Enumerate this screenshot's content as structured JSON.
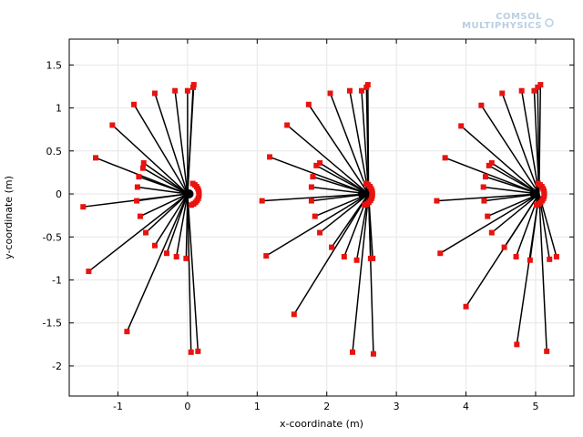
{
  "logo": {
    "line1": "COMSOL",
    "line2": "MULTIPHYSICS",
    "color": "#b9cfe3"
  },
  "colors": {
    "line": "#000000",
    "marker": "#e8130f",
    "grid": "#e6e6e6",
    "frame": "#000000"
  },
  "chart_data": {
    "type": "line",
    "title": "",
    "xlabel": "x-coordinate (m)",
    "ylabel": "y-coordinate (m)",
    "xlim": [
      -1.7,
      5.55
    ],
    "ylim": [
      -2.35,
      1.8
    ],
    "xticks": [
      -1,
      0,
      1,
      2,
      3,
      4,
      5
    ],
    "yticks": [
      -2,
      -1.5,
      -1,
      -0.5,
      0,
      0.5,
      1,
      1.5
    ],
    "grid": true,
    "legend": "none",
    "series": [
      {
        "segments": [
          [
            [
              0.0,
              0.0
            ],
            [
              -1.5,
              -0.15
            ]
          ],
          [
            [
              0.0,
              0.0
            ],
            [
              -1.42,
              -0.9
            ]
          ],
          [
            [
              0.0,
              0.0
            ],
            [
              -1.32,
              0.42
            ]
          ],
          [
            [
              0.0,
              0.0
            ],
            [
              -1.08,
              0.8
            ]
          ],
          [
            [
              0.0,
              0.0
            ],
            [
              -0.87,
              -1.6
            ]
          ],
          [
            [
              0.0,
              0.0
            ],
            [
              -0.77,
              1.04
            ]
          ],
          [
            [
              0.0,
              0.0
            ],
            [
              -0.72,
              0.08
            ]
          ],
          [
            [
              0.0,
              0.0
            ],
            [
              -0.73,
              -0.08
            ]
          ],
          [
            [
              0.0,
              0.0
            ],
            [
              -0.7,
              0.2
            ]
          ],
          [
            [
              0.0,
              0.0
            ],
            [
              -0.68,
              -0.26
            ]
          ],
          [
            [
              0.0,
              0.0
            ],
            [
              -0.63,
              0.36
            ]
          ],
          [
            [
              0.0,
              0.0
            ],
            [
              -0.6,
              -0.45
            ]
          ],
          [
            [
              0.0,
              0.0
            ],
            [
              -0.64,
              0.3
            ]
          ],
          [
            [
              0.0,
              0.0
            ],
            [
              -0.47,
              1.17
            ]
          ],
          [
            [
              0.0,
              0.0
            ],
            [
              -0.47,
              -0.6
            ]
          ],
          [
            [
              0.0,
              0.0
            ],
            [
              -0.3,
              -0.69
            ]
          ],
          [
            [
              0.0,
              0.0
            ],
            [
              -0.18,
              1.2
            ]
          ],
          [
            [
              0.0,
              0.0
            ],
            [
              -0.16,
              -0.73
            ]
          ],
          [
            [
              0.0,
              0.0
            ],
            [
              -0.02,
              -0.75
            ]
          ],
          [
            [
              0.0,
              0.0
            ],
            [
              0.0,
              1.2
            ]
          ],
          [
            [
              0.0,
              0.0
            ],
            [
              0.05,
              -1.84
            ]
          ],
          [
            [
              0.0,
              0.0
            ],
            [
              0.08,
              1.24
            ]
          ],
          [
            [
              0.0,
              0.0
            ],
            [
              0.09,
              1.27
            ]
          ],
          [
            [
              0.0,
              0.0
            ],
            [
              0.15,
              -1.83
            ]
          ]
        ]
      },
      {
        "segments": [
          [
            [
              2.6,
              0.0
            ],
            [
              1.07,
              -0.08
            ]
          ],
          [
            [
              2.6,
              0.0
            ],
            [
              1.13,
              -0.72
            ]
          ],
          [
            [
              2.6,
              0.0
            ],
            [
              1.18,
              0.43
            ]
          ],
          [
            [
              2.6,
              0.0
            ],
            [
              1.43,
              0.8
            ]
          ],
          [
            [
              2.6,
              0.0
            ],
            [
              1.53,
              -1.4
            ]
          ],
          [
            [
              2.6,
              0.0
            ],
            [
              1.74,
              1.04
            ]
          ],
          [
            [
              2.6,
              0.0
            ],
            [
              1.78,
              0.08
            ]
          ],
          [
            [
              2.6,
              0.0
            ],
            [
              1.78,
              -0.08
            ]
          ],
          [
            [
              2.6,
              0.0
            ],
            [
              1.8,
              0.2
            ]
          ],
          [
            [
              2.6,
              0.0
            ],
            [
              1.83,
              -0.26
            ]
          ],
          [
            [
              2.6,
              0.0
            ],
            [
              1.85,
              0.33
            ]
          ],
          [
            [
              2.6,
              0.0
            ],
            [
              1.9,
              -0.45
            ]
          ],
          [
            [
              2.6,
              0.0
            ],
            [
              1.9,
              0.36
            ]
          ],
          [
            [
              2.6,
              0.0
            ],
            [
              2.05,
              1.17
            ]
          ],
          [
            [
              2.6,
              0.0
            ],
            [
              2.07,
              -0.62
            ]
          ],
          [
            [
              2.6,
              0.0
            ],
            [
              2.25,
              -0.73
            ]
          ],
          [
            [
              2.6,
              0.0
            ],
            [
              2.33,
              1.2
            ]
          ],
          [
            [
              2.6,
              0.0
            ],
            [
              2.37,
              -1.84
            ]
          ],
          [
            [
              2.6,
              0.0
            ],
            [
              2.43,
              -0.77
            ]
          ],
          [
            [
              2.6,
              0.0
            ],
            [
              2.5,
              1.2
            ]
          ],
          [
            [
              2.6,
              0.0
            ],
            [
              2.57,
              1.24
            ]
          ],
          [
            [
              2.6,
              0.0
            ],
            [
              2.59,
              1.27
            ]
          ],
          [
            [
              2.6,
              0.0
            ],
            [
              2.63,
              -0.75
            ]
          ],
          [
            [
              2.6,
              0.0
            ],
            [
              2.66,
              -0.75
            ]
          ],
          [
            [
              2.6,
              0.0
            ],
            [
              2.67,
              -1.86
            ]
          ]
        ]
      },
      {
        "segments": [
          [
            [
              5.05,
              0.0
            ],
            [
              3.58,
              -0.08
            ]
          ],
          [
            [
              5.05,
              0.0
            ],
            [
              3.63,
              -0.69
            ]
          ],
          [
            [
              5.05,
              0.0
            ],
            [
              3.7,
              0.42
            ]
          ],
          [
            [
              5.05,
              0.0
            ],
            [
              3.93,
              0.79
            ]
          ],
          [
            [
              5.05,
              0.0
            ],
            [
              4.0,
              -1.31
            ]
          ],
          [
            [
              5.05,
              0.0
            ],
            [
              4.22,
              1.03
            ]
          ],
          [
            [
              5.05,
              0.0
            ],
            [
              4.25,
              0.08
            ]
          ],
          [
            [
              5.05,
              0.0
            ],
            [
              4.26,
              -0.08
            ]
          ],
          [
            [
              5.05,
              0.0
            ],
            [
              4.28,
              0.2
            ]
          ],
          [
            [
              5.05,
              0.0
            ],
            [
              4.31,
              -0.26
            ]
          ],
          [
            [
              5.05,
              0.0
            ],
            [
              4.33,
              0.33
            ]
          ],
          [
            [
              5.05,
              0.0
            ],
            [
              4.37,
              -0.45
            ]
          ],
          [
            [
              5.05,
              0.0
            ],
            [
              4.37,
              0.36
            ]
          ],
          [
            [
              5.05,
              0.0
            ],
            [
              4.52,
              1.17
            ]
          ],
          [
            [
              5.05,
              0.0
            ],
            [
              4.55,
              -0.62
            ]
          ],
          [
            [
              5.05,
              0.0
            ],
            [
              4.72,
              -0.73
            ]
          ],
          [
            [
              5.05,
              0.0
            ],
            [
              4.73,
              -1.75
            ]
          ],
          [
            [
              5.05,
              0.0
            ],
            [
              4.8,
              1.2
            ]
          ],
          [
            [
              5.05,
              0.0
            ],
            [
              4.92,
              -0.77
            ]
          ],
          [
            [
              5.05,
              0.0
            ],
            [
              4.98,
              1.2
            ]
          ],
          [
            [
              5.05,
              0.0
            ],
            [
              5.03,
              1.24
            ]
          ],
          [
            [
              5.05,
              0.0
            ],
            [
              5.07,
              1.27
            ]
          ],
          [
            [
              5.05,
              0.0
            ],
            [
              5.16,
              -1.83
            ]
          ],
          [
            [
              5.05,
              0.0
            ],
            [
              5.2,
              -0.76
            ]
          ],
          [
            [
              5.05,
              0.0
            ],
            [
              5.3,
              -0.73
            ]
          ]
        ]
      }
    ],
    "hub_arcs": [
      {
        "center": [
          0.1,
          0.0
        ]
      },
      {
        "center": [
          2.59,
          0.0
        ]
      },
      {
        "center": [
          5.06,
          0.0
        ]
      }
    ]
  }
}
